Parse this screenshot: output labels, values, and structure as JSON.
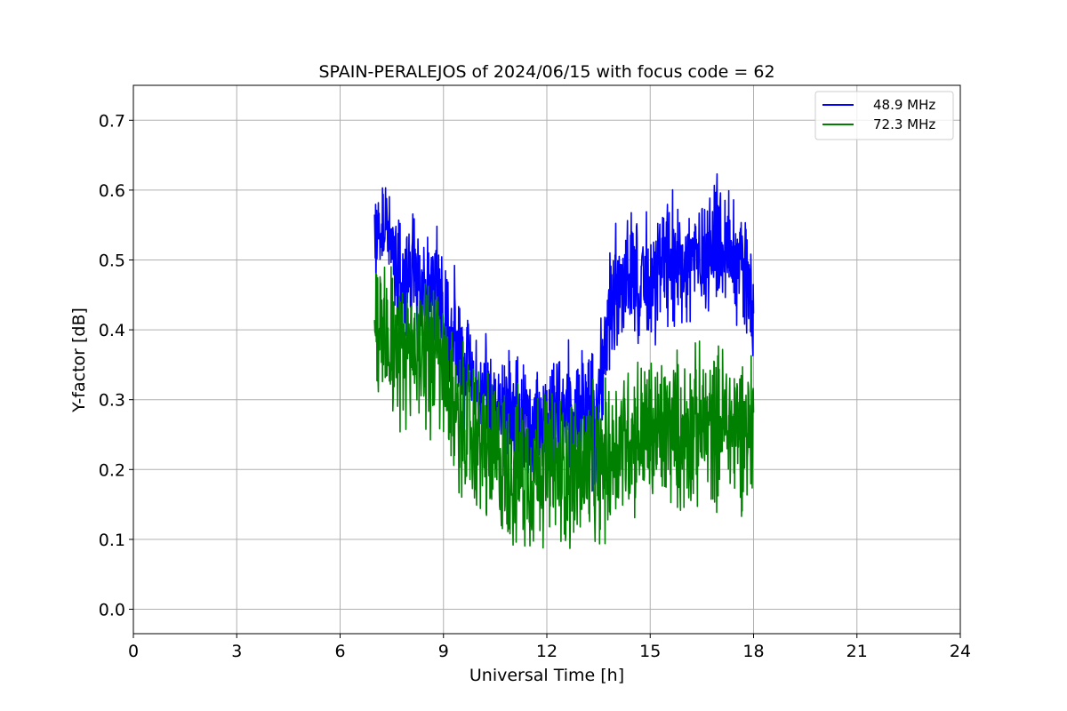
{
  "chart_data": {
    "type": "line",
    "title": "SPAIN-PERALEJOS of 2024/06/15 with focus code = 62",
    "xlabel": "Universal Time [h]",
    "ylabel": "Y-factor [dB]",
    "xlim": [
      0,
      24
    ],
    "ylim": [
      -0.035,
      0.75
    ],
    "xticks": [
      0,
      3,
      6,
      9,
      12,
      15,
      18,
      21,
      24
    ],
    "xtick_labels": [
      "0",
      "3",
      "6",
      "9",
      "12",
      "15",
      "18",
      "21",
      "24"
    ],
    "yticks": [
      0.0,
      0.1,
      0.2,
      0.3,
      0.4,
      0.5,
      0.6,
      0.7
    ],
    "ytick_labels": [
      "0.0",
      "0.1",
      "0.2",
      "0.3",
      "0.4",
      "0.5",
      "0.6",
      "0.7"
    ],
    "grid": true,
    "legend_position": "top-right",
    "series": [
      {
        "name": "48.9 MHz",
        "color": "#0000ff",
        "x": [
          7.0,
          7.2,
          7.5,
          7.8,
          8.0,
          8.3,
          8.6,
          8.9,
          9.2,
          9.5,
          9.8,
          10.1,
          10.4,
          10.7,
          11.0,
          11.3,
          11.6,
          11.9,
          12.2,
          12.5,
          12.8,
          13.1,
          13.4,
          13.6,
          13.8,
          14.1,
          14.4,
          14.7,
          15.0,
          15.3,
          15.6,
          15.9,
          16.2,
          16.5,
          16.8,
          17.1,
          17.4,
          17.7,
          18.0
        ],
        "y": [
          0.54,
          0.56,
          0.53,
          0.47,
          0.48,
          0.47,
          0.46,
          0.44,
          0.4,
          0.36,
          0.33,
          0.31,
          0.29,
          0.28,
          0.27,
          0.26,
          0.26,
          0.27,
          0.28,
          0.29,
          0.29,
          0.28,
          0.27,
          0.33,
          0.45,
          0.47,
          0.47,
          0.46,
          0.47,
          0.48,
          0.49,
          0.5,
          0.5,
          0.51,
          0.52,
          0.53,
          0.51,
          0.49,
          0.44
        ]
      },
      {
        "name": "72.3 MHz",
        "color": "#008000",
        "x": [
          7.0,
          7.2,
          7.5,
          7.8,
          8.0,
          8.3,
          8.6,
          8.9,
          9.2,
          9.5,
          9.8,
          10.1,
          10.4,
          10.7,
          11.0,
          11.3,
          11.6,
          11.9,
          12.2,
          12.5,
          12.8,
          13.1,
          13.4,
          13.6,
          13.8,
          14.1,
          14.4,
          14.7,
          15.0,
          15.3,
          15.6,
          15.9,
          16.2,
          16.5,
          16.8,
          17.1,
          17.4,
          17.7,
          18.0
        ],
        "y": [
          0.4,
          0.42,
          0.39,
          0.36,
          0.37,
          0.38,
          0.37,
          0.35,
          0.3,
          0.27,
          0.25,
          0.24,
          0.22,
          0.21,
          0.2,
          0.2,
          0.2,
          0.21,
          0.2,
          0.2,
          0.2,
          0.2,
          0.2,
          0.2,
          0.22,
          0.24,
          0.25,
          0.25,
          0.25,
          0.25,
          0.26,
          0.25,
          0.26,
          0.26,
          0.26,
          0.27,
          0.26,
          0.26,
          0.26
        ]
      }
    ]
  }
}
